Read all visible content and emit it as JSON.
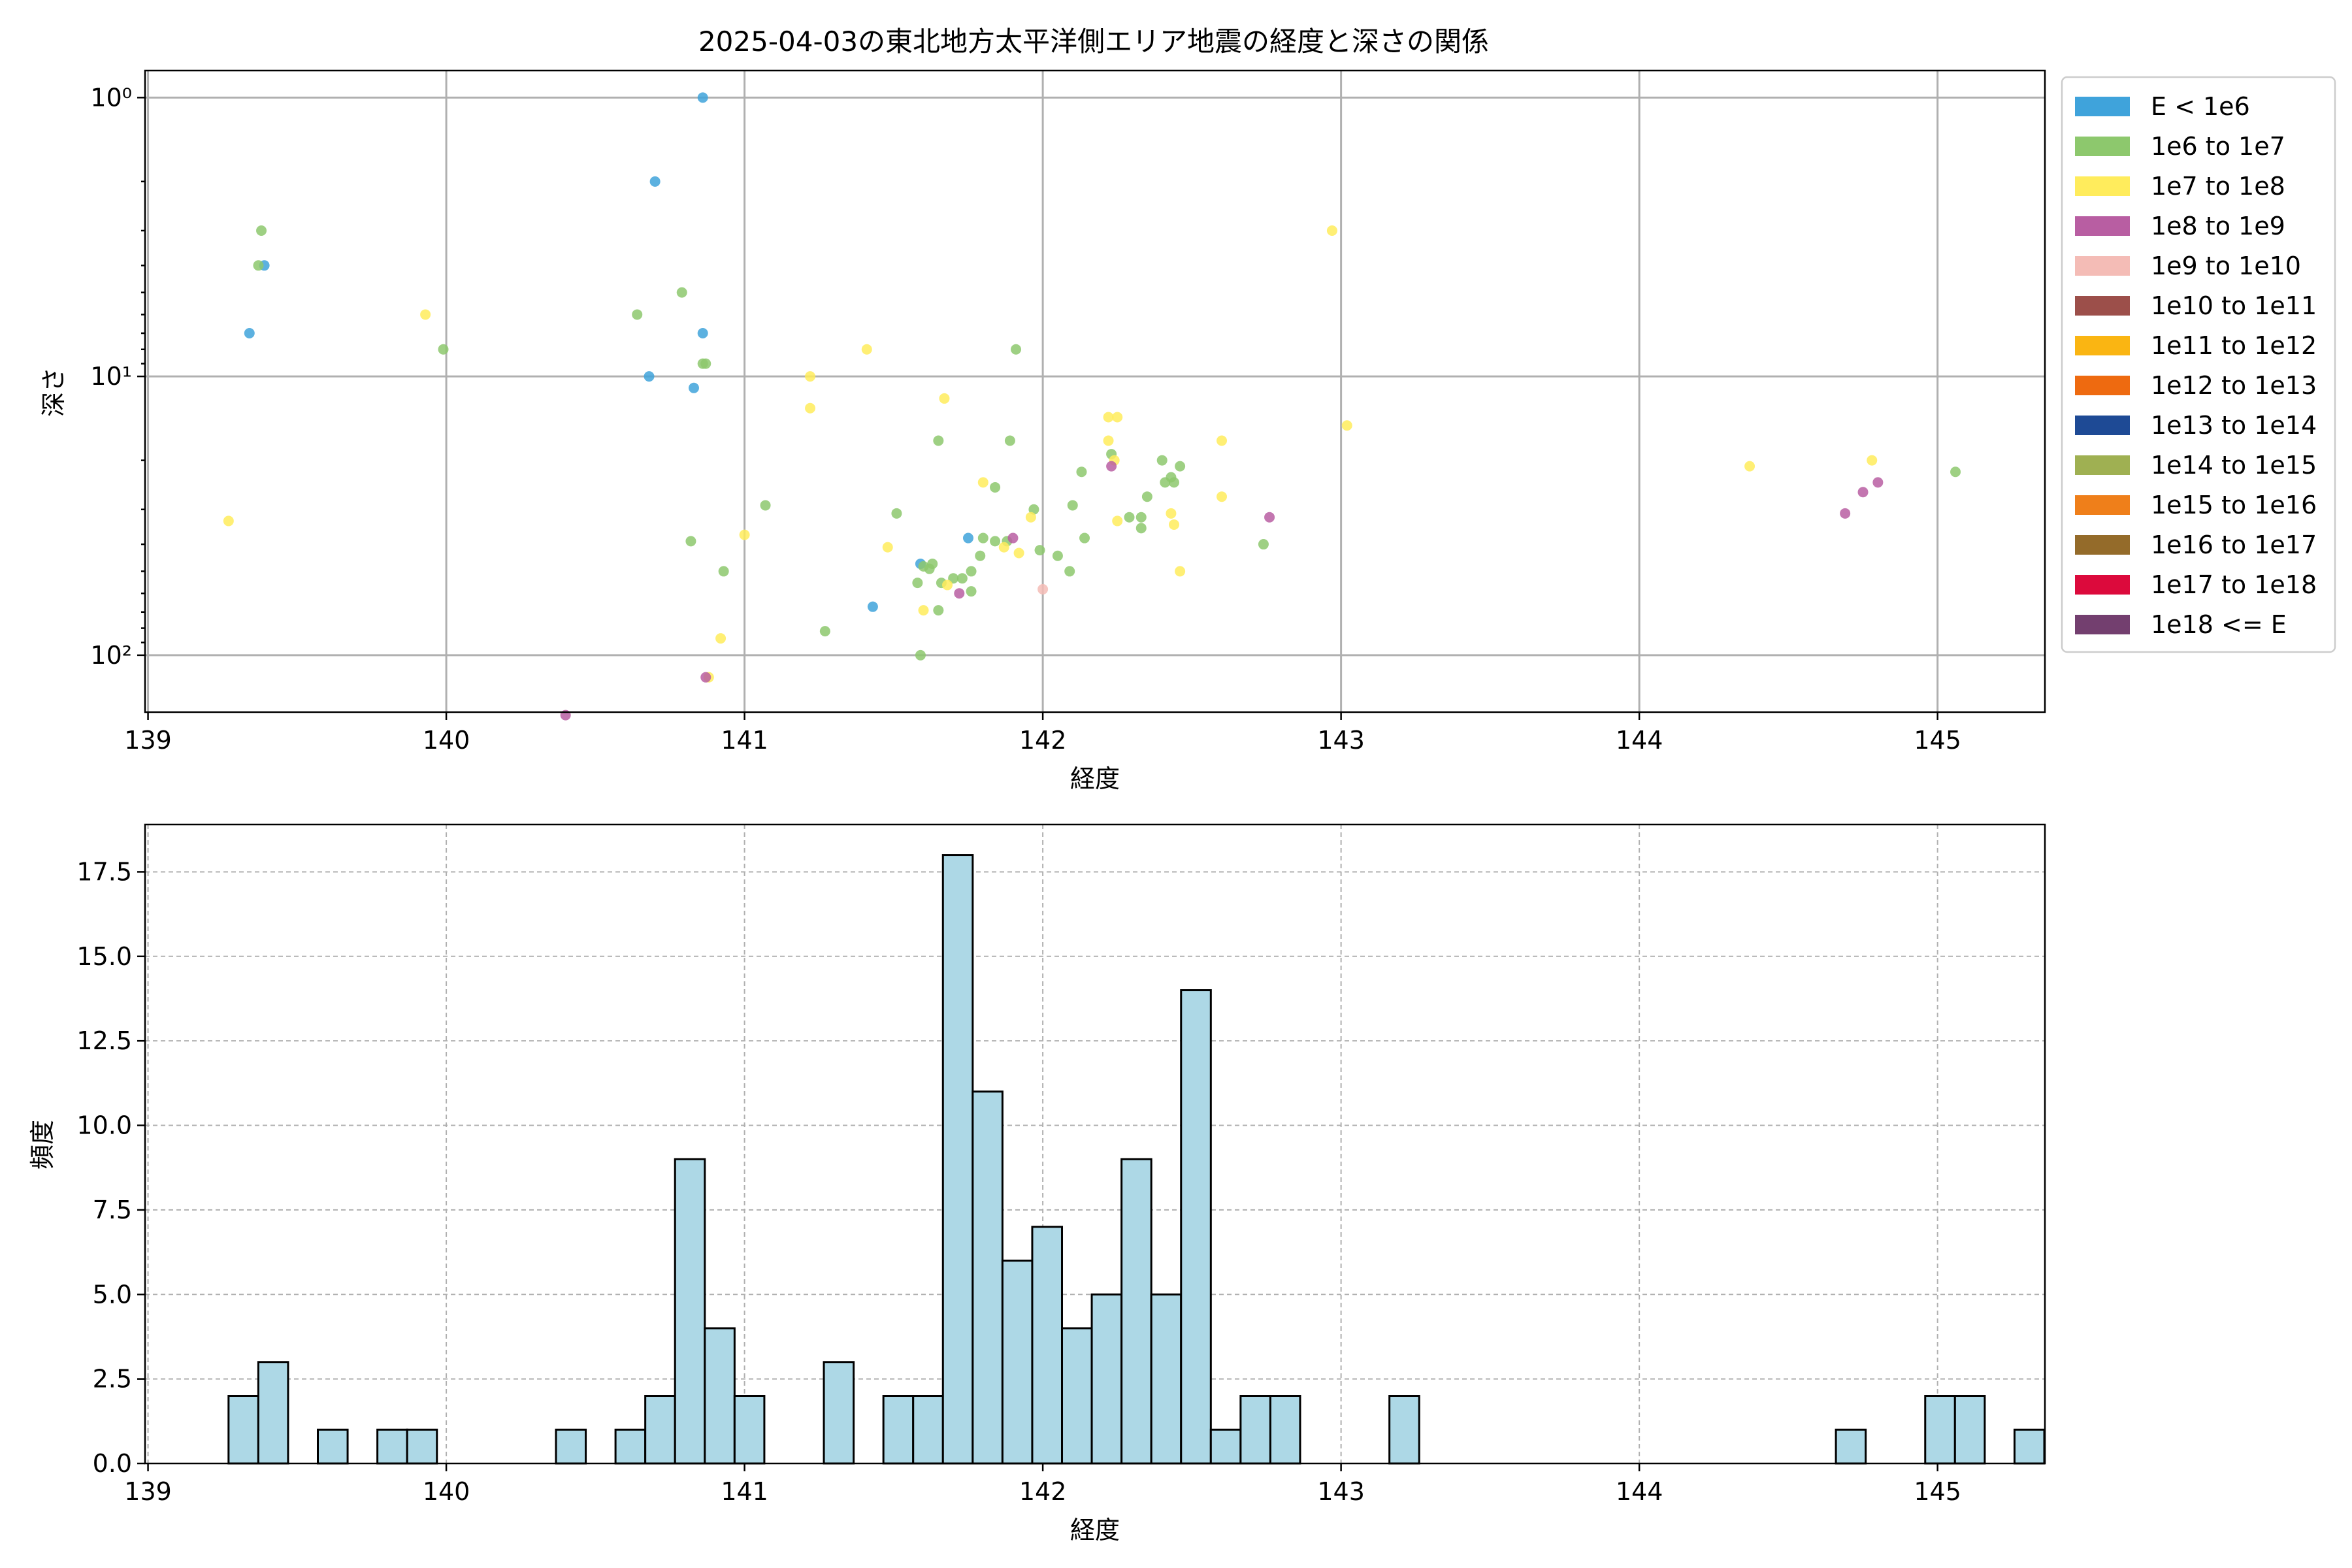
{
  "chart_data": [
    {
      "type": "scatter",
      "title": "2025-04-03の東北地方太平洋側エリア地震の経度と深さの関係",
      "xlabel": "経度",
      "ylabel": "深さ",
      "xlim": [
        138.99,
        145.36
      ],
      "ylim": [
        160,
        0.8
      ],
      "y_scale": "log-inverted",
      "x_ticks": [
        139,
        140,
        141,
        142,
        143,
        144,
        145
      ],
      "y_ticks": [
        {
          "value": 1,
          "label": "10⁰"
        },
        {
          "value": 10,
          "label": "10¹"
        },
        {
          "value": 100,
          "label": "10²"
        }
      ],
      "grid": true,
      "legend_position": "outside-right",
      "legend": [
        {
          "label": "E < 1e6",
          "color": "#3fa3db"
        },
        {
          "label": "1e6 to 1e7",
          "color": "#8dc86d"
        },
        {
          "label": "1e7 to 1e8",
          "color": "#ffec5c"
        },
        {
          "label": "1e8 to 1e9",
          "color": "#b85ea2"
        },
        {
          "label": "1e9 to 1e10",
          "color": "#f4bcb6"
        },
        {
          "label": "1e10 to 1e11",
          "color": "#9c4f4a"
        },
        {
          "label": "1e11 to 1e12",
          "color": "#fab512"
        },
        {
          "label": "1e12 to 1e13",
          "color": "#ee6a10"
        },
        {
          "label": "1e13 to 1e14",
          "color": "#1e4a95"
        },
        {
          "label": "1e14 to 1e15",
          "color": "#9fb052"
        },
        {
          "label": "1e15 to 1e16",
          "color": "#ef7f1a"
        },
        {
          "label": "1e16 to 1e17",
          "color": "#946b2a"
        },
        {
          "label": "1e17 to 1e18",
          "color": "#dc0a3c"
        },
        {
          "label": "1e18 <= E",
          "color": "#733f6f"
        }
      ],
      "series": [
        {
          "name": "E < 1e6",
          "color": "#3fa3db",
          "points": [
            [
              140.86,
              1.0
            ],
            [
              140.7,
              2.0
            ],
            [
              139.39,
              4.0
            ],
            [
              139.34,
              7.0
            ],
            [
              140.86,
              7.0
            ],
            [
              140.68,
              10.0
            ],
            [
              140.83,
              11.0
            ],
            [
              141.75,
              38.0
            ],
            [
              141.59,
              47.0
            ],
            [
              141.43,
              67.0
            ]
          ]
        },
        {
          "name": "1e6 to 1e7",
          "color": "#8dc86d",
          "points": [
            [
              139.38,
              3.0
            ],
            [
              139.37,
              4.0
            ],
            [
              140.79,
              5.0
            ],
            [
              140.64,
              6.0
            ],
            [
              139.99,
              8.0
            ],
            [
              140.86,
              9.0
            ],
            [
              140.87,
              9.0
            ],
            [
              141.91,
              8.0
            ],
            [
              141.65,
              17.0
            ],
            [
              141.89,
              17.0
            ],
            [
              142.23,
              19.0
            ],
            [
              142.4,
              20.0
            ],
            [
              142.46,
              21.0
            ],
            [
              142.13,
              22.0
            ],
            [
              142.43,
              23.0
            ],
            [
              142.41,
              24.0
            ],
            [
              142.1,
              29.0
            ],
            [
              142.35,
              27.0
            ],
            [
              142.44,
              24.0
            ],
            [
              141.84,
              25.0
            ],
            [
              141.07,
              29.0
            ],
            [
              141.51,
              31.0
            ],
            [
              141.97,
              30.0
            ],
            [
              142.29,
              32.0
            ],
            [
              142.33,
              32.0
            ],
            [
              142.33,
              35.0
            ],
            [
              142.14,
              38.0
            ],
            [
              141.8,
              38.0
            ],
            [
              141.84,
              39.0
            ],
            [
              141.88,
              39.0
            ],
            [
              140.82,
              39.0
            ],
            [
              141.99,
              42.0
            ],
            [
              142.05,
              44.0
            ],
            [
              142.09,
              50.0
            ],
            [
              141.79,
              44.0
            ],
            [
              141.63,
              47.0
            ],
            [
              141.6,
              48.0
            ],
            [
              141.62,
              49.0
            ],
            [
              141.76,
              50.0
            ],
            [
              141.7,
              53.0
            ],
            [
              141.73,
              53.0
            ],
            [
              141.58,
              55.0
            ],
            [
              141.66,
              55.0
            ],
            [
              141.76,
              59.0
            ],
            [
              141.65,
              69.0
            ],
            [
              140.93,
              50.0
            ],
            [
              141.27,
              82.0
            ],
            [
              141.59,
              100.0
            ],
            [
              142.74,
              40.0
            ],
            [
              145.06,
              22.0
            ]
          ]
        },
        {
          "name": "1e7 to 1e8",
          "color": "#ffec5c",
          "points": [
            [
              142.97,
              3.0
            ],
            [
              139.93,
              6.0
            ],
            [
              141.41,
              8.0
            ],
            [
              141.22,
              10.0
            ],
            [
              141.22,
              13.0
            ],
            [
              141.67,
              12.0
            ],
            [
              142.22,
              14.0
            ],
            [
              142.25,
              14.0
            ],
            [
              143.02,
              15.0
            ],
            [
              142.22,
              17.0
            ],
            [
              142.6,
              17.0
            ],
            [
              142.24,
              20.0
            ],
            [
              144.37,
              21.0
            ],
            [
              144.78,
              20.0
            ],
            [
              141.8,
              24.0
            ],
            [
              142.6,
              27.0
            ],
            [
              141.96,
              32.0
            ],
            [
              142.25,
              33.0
            ],
            [
              142.43,
              31.0
            ],
            [
              142.44,
              34.0
            ],
            [
              139.27,
              33.0
            ],
            [
              141.0,
              37.0
            ],
            [
              141.48,
              41.0
            ],
            [
              141.87,
              41.0
            ],
            [
              141.92,
              43.0
            ],
            [
              142.46,
              50.0
            ],
            [
              141.68,
              56.0
            ],
            [
              141.6,
              69.0
            ],
            [
              140.92,
              87.0
            ],
            [
              140.88,
              120.0
            ]
          ]
        },
        {
          "name": "1e8 to 1e9",
          "color": "#b85ea2",
          "points": [
            [
              142.23,
              21.0
            ],
            [
              142.76,
              32.0
            ],
            [
              141.9,
              38.0
            ],
            [
              141.72,
              60.0
            ],
            [
              144.69,
              31.0
            ],
            [
              144.75,
              26.0
            ],
            [
              144.8,
              24.0
            ],
            [
              140.4,
              164.0
            ],
            [
              140.87,
              120.0
            ]
          ]
        },
        {
          "name": "1e9 to 1e10",
          "color": "#f4bcb6",
          "points": [
            [
              142.0,
              58.0
            ]
          ]
        }
      ]
    },
    {
      "type": "bar",
      "title": "",
      "xlabel": "経度",
      "ylabel": "頻度",
      "xlim": [
        138.99,
        145.36
      ],
      "ylim": [
        0,
        18.9
      ],
      "x_ticks": [
        139,
        140,
        141,
        142,
        143,
        144,
        145
      ],
      "y_ticks": [
        0.0,
        2.5,
        5.0,
        7.5,
        10.0,
        12.5,
        15.0,
        17.5
      ],
      "grid": true,
      "bar_color": "#add8e6",
      "bar_edge_color": "#000000",
      "bin_start": 139.27,
      "bin_width": 0.0998,
      "counts": [
        2,
        3,
        0,
        1,
        0,
        1,
        1,
        0,
        0,
        0,
        0,
        1,
        0,
        1,
        2,
        9,
        4,
        2,
        0,
        0,
        3,
        0,
        2,
        2,
        18,
        11,
        6,
        7,
        4,
        5,
        9,
        5,
        14,
        1,
        2,
        2,
        0,
        0,
        0,
        2,
        0,
        0,
        0,
        0,
        0,
        0,
        0,
        0,
        0,
        0,
        0,
        0,
        0,
        0,
        1,
        0,
        0,
        2,
        2,
        0,
        1
      ]
    }
  ]
}
